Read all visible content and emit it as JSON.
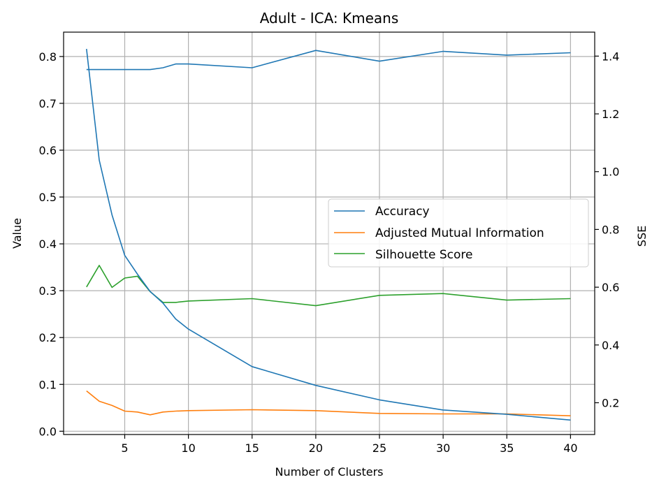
{
  "chart_data": {
    "type": "line",
    "title": "Adult - ICA: Kmeans",
    "xlabel": "Number of Clusters",
    "ylabel": "Value",
    "y2label": "SSE",
    "xlim": [
      0.2,
      41.9
    ],
    "ylim": [
      -0.007,
      0.852
    ],
    "y2lim": [
      0.09,
      1.483
    ],
    "xticks": [
      5,
      10,
      15,
      20,
      25,
      30,
      35,
      40
    ],
    "yticks": [
      0.0,
      0.1,
      0.2,
      0.3,
      0.4,
      0.5,
      0.6,
      0.7,
      0.8
    ],
    "y2ticks": [
      0.2,
      0.4,
      0.6,
      0.8,
      1.0,
      1.2,
      1.4
    ],
    "grid": true,
    "legend_position": "center-right",
    "series": [
      {
        "name": "Accuracy",
        "axis": "left",
        "color": "#1f77b4",
        "x": [
          2,
          3,
          4,
          5,
          6,
          7,
          8,
          9,
          10,
          15,
          20,
          25,
          30,
          35,
          40
        ],
        "y": [
          0.772,
          0.772,
          0.772,
          0.772,
          0.772,
          0.772,
          0.776,
          0.784,
          0.784,
          0.776,
          0.813,
          0.79,
          0.811,
          0.803,
          0.808
        ]
      },
      {
        "name": "Adjusted Mutual Information",
        "axis": "left",
        "color": "#ff7f0e",
        "x": [
          2,
          3,
          4,
          5,
          6,
          7,
          8,
          9,
          10,
          15,
          20,
          25,
          30,
          35,
          40
        ],
        "y": [
          0.086,
          0.064,
          0.055,
          0.043,
          0.041,
          0.035,
          0.041,
          0.043,
          0.044,
          0.046,
          0.044,
          0.038,
          0.037,
          0.037,
          0.033
        ]
      },
      {
        "name": "Silhouette Score",
        "axis": "left",
        "color": "#2ca02c",
        "x": [
          2,
          3,
          4,
          5,
          6,
          7,
          8,
          9,
          10,
          15,
          20,
          25,
          30,
          35,
          40
        ],
        "y": [
          0.308,
          0.354,
          0.307,
          0.327,
          0.331,
          0.298,
          0.275,
          0.275,
          0.278,
          0.283,
          0.268,
          0.29,
          0.294,
          0.28,
          0.283
        ]
      },
      {
        "name": "SSE",
        "axis": "right",
        "color": "#1f77b4",
        "x": [
          2,
          3,
          4,
          5,
          6,
          7,
          8,
          9,
          10,
          15,
          20,
          25,
          30,
          35,
          40
        ],
        "y": [
          1.425,
          1.04,
          0.85,
          0.71,
          0.645,
          0.585,
          0.545,
          0.49,
          0.455,
          0.325,
          0.26,
          0.21,
          0.175,
          0.16,
          0.14
        ]
      }
    ],
    "legend": [
      "Accuracy",
      "Adjusted Mutual Information",
      "Silhouette Score"
    ]
  }
}
